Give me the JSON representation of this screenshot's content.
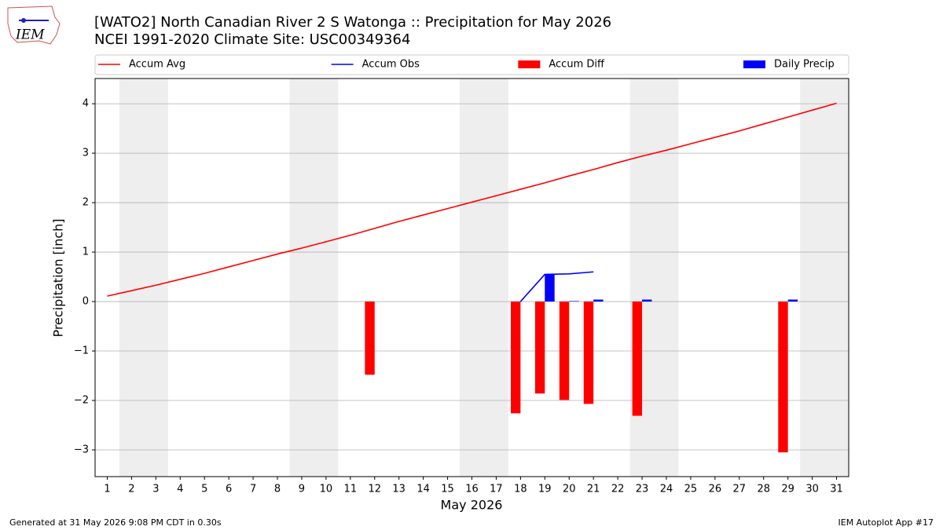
{
  "logo_text": "IEM",
  "footer": {
    "left": "Generated at 31 May 2026 9:08 PM CDT in 0.30s",
    "right": "IEM Autoplot App #17"
  },
  "chart_data": {
    "type": "combo",
    "title": "[WATO2] North Canadian River 2 S Watonga :: Precipitation for May 2026",
    "subtitle": "NCEI 1991-2020 Climate Site: USC00349364",
    "x_label": "May 2026",
    "y_label": "Precipitation [inch]",
    "x": [
      1,
      2,
      3,
      4,
      5,
      6,
      7,
      8,
      9,
      10,
      11,
      12,
      13,
      14,
      15,
      16,
      17,
      18,
      19,
      20,
      21,
      22,
      23,
      24,
      25,
      26,
      27,
      28,
      29,
      30,
      31
    ],
    "xlim": [
      0.5,
      31.5
    ],
    "xticks": [
      1,
      2,
      3,
      4,
      5,
      6,
      7,
      8,
      9,
      10,
      11,
      12,
      13,
      14,
      15,
      16,
      17,
      18,
      19,
      20,
      21,
      22,
      23,
      24,
      25,
      26,
      27,
      28,
      29,
      30,
      31
    ],
    "ylim": [
      -3.54,
      4.51
    ],
    "yticks": [
      {
        "value": -3,
        "label": "−3"
      },
      {
        "value": -2,
        "label": "−2"
      },
      {
        "value": -1,
        "label": "−1"
      },
      0,
      1,
      2,
      3,
      4
    ],
    "grid": true,
    "weekend_spans": [
      [
        1.5,
        3.5
      ],
      [
        8.5,
        10.5
      ],
      [
        15.5,
        17.5
      ],
      [
        22.5,
        24.5
      ],
      [
        29.5,
        31.5
      ]
    ],
    "weekend_color": "#eeeeee",
    "series": [
      {
        "name": "Accum Avg",
        "type": "line",
        "color": "#ff0000",
        "values": [
          0.11,
          0.22,
          0.33,
          0.45,
          0.57,
          0.7,
          0.83,
          0.96,
          1.08,
          1.21,
          1.34,
          1.48,
          1.62,
          1.75,
          1.88,
          2.01,
          2.14,
          2.27,
          2.4,
          2.54,
          2.67,
          2.81,
          2.94,
          3.06,
          3.19,
          3.32,
          3.45,
          3.59,
          3.73,
          3.87,
          4.01
        ]
      },
      {
        "name": "Accum Obs",
        "type": "line",
        "color": "#0000ff",
        "values": [
          null,
          null,
          null,
          null,
          null,
          null,
          null,
          null,
          null,
          null,
          null,
          null,
          null,
          null,
          null,
          null,
          null,
          0,
          0.55,
          0.56,
          0.6,
          null,
          null,
          null,
          null,
          null,
          null,
          null,
          null,
          null,
          null
        ]
      },
      {
        "name": "Accum Diff",
        "type": "bar",
        "color": "#ff0000",
        "values": [
          null,
          null,
          null,
          null,
          null,
          null,
          null,
          null,
          null,
          null,
          null,
          -1.48,
          null,
          null,
          null,
          null,
          null,
          -2.26,
          -1.86,
          -1.99,
          -2.07,
          null,
          -2.31,
          null,
          null,
          null,
          null,
          null,
          -3.05,
          null,
          null
        ]
      },
      {
        "name": "Daily Precip",
        "type": "bar",
        "color": "#0000ff",
        "values": [
          null,
          null,
          null,
          null,
          null,
          null,
          null,
          null,
          null,
          null,
          null,
          null,
          null,
          null,
          null,
          null,
          null,
          null,
          0.55,
          0.01,
          0.04,
          null,
          0.04,
          null,
          null,
          null,
          null,
          null,
          0.04,
          null,
          null
        ]
      }
    ]
  }
}
